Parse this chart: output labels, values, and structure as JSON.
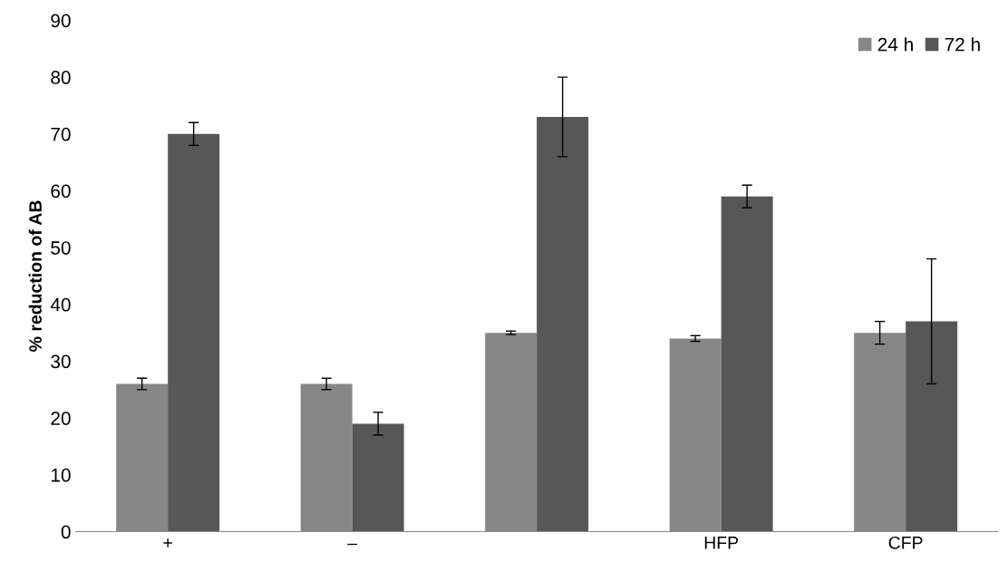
{
  "chart_data": {
    "type": "bar",
    "ylabel": "% reduction of AB",
    "categories": [
      "+",
      "–",
      null,
      "HFP",
      "CFP"
    ],
    "series": [
      {
        "name": "24 h",
        "color": "#878787",
        "values": [
          26,
          26,
          35,
          34,
          35
        ],
        "errors": [
          1,
          1,
          0.3,
          0.5,
          2
        ]
      },
      {
        "name": "72 h",
        "color": "#575757",
        "values": [
          70,
          19,
          73,
          59,
          37
        ],
        "errors": [
          2,
          2,
          7,
          2,
          11
        ]
      }
    ],
    "ylim": [
      0,
      90
    ],
    "yticks": [
      0,
      10,
      20,
      30,
      40,
      50,
      60,
      70,
      80,
      90
    ],
    "grid": false,
    "legend": "top right"
  }
}
